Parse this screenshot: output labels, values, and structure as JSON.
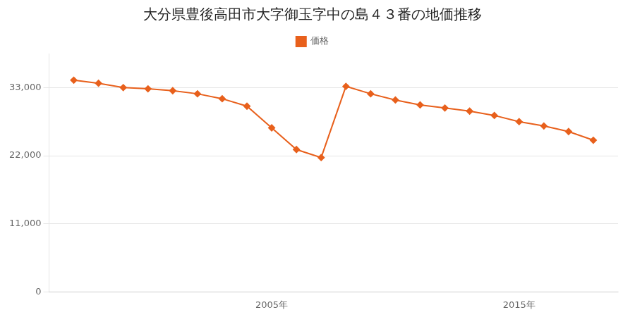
{
  "chart_data": {
    "type": "line",
    "title": "大分県豊後高田市大字御玉字中の島４３番の地価推移",
    "legend": "top",
    "grid": "y",
    "x": [
      1997,
      1998,
      1999,
      2000,
      2001,
      2002,
      2003,
      2004,
      2005,
      2006,
      2007,
      2008,
      2009,
      2010,
      2011,
      2012,
      2013,
      2014,
      2015,
      2016,
      2017,
      2018
    ],
    "xlim": [
      1996,
      2019
    ],
    "xticks": [
      {
        "value": 2005,
        "label": "2005年"
      },
      {
        "value": 2015,
        "label": "2015年"
      }
    ],
    "ylim": [
      0,
      38500
    ],
    "yticks": [
      0,
      {
        "value": 11000,
        "label": "11,000"
      },
      {
        "value": 22000,
        "label": "22,000"
      },
      {
        "value": 33000,
        "label": "33,000"
      }
    ],
    "series": [
      {
        "name": "価格",
        "color": "#e8601c",
        "marker": "diamond",
        "values": [
          34200,
          33700,
          33000,
          32800,
          32500,
          32000,
          31200,
          30000,
          26500,
          23000,
          21700,
          33200,
          32000,
          31000,
          30200,
          29700,
          29200,
          28500,
          27500,
          26800,
          25900,
          24500
        ]
      }
    ]
  }
}
